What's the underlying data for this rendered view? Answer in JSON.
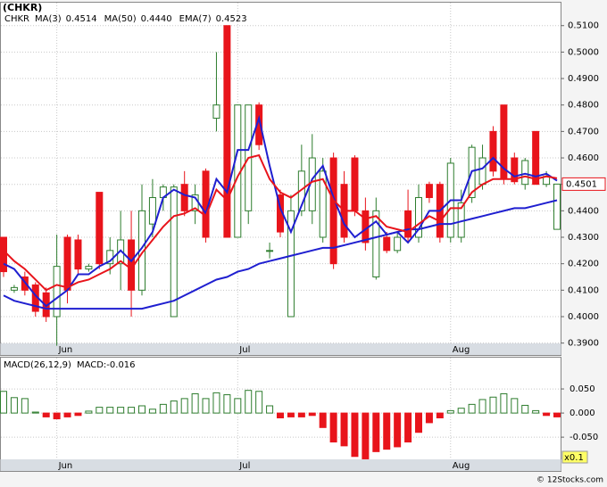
{
  "chart_data": [
    {
      "type": "candlestick",
      "title": "(CHKR)",
      "symbol": "CHKR",
      "categories": [
        null,
        null,
        null,
        null,
        null,
        "Jun",
        null,
        null,
        null,
        null,
        null,
        null,
        null,
        null,
        null,
        null,
        null,
        null,
        null,
        null,
        null,
        null,
        "Jul",
        null,
        null,
        null,
        null,
        null,
        null,
        null,
        null,
        null,
        null,
        null,
        null,
        null,
        null,
        null,
        null,
        null,
        null,
        null,
        "Aug",
        null,
        null,
        null,
        null,
        null,
        null,
        null,
        null,
        null,
        null
      ],
      "candles": [
        [
          0.43,
          0.43,
          0.415,
          0.417
        ],
        [
          0.41,
          0.412,
          0.409,
          0.411
        ],
        [
          0.415,
          0.417,
          0.408,
          0.41
        ],
        [
          0.412,
          0.413,
          0.4,
          0.402
        ],
        [
          0.409,
          0.411,
          0.398,
          0.4
        ],
        [
          0.4,
          0.431,
          0.389,
          0.419
        ],
        [
          0.43,
          0.431,
          0.405,
          0.41
        ],
        [
          0.429,
          0.431,
          0.416,
          0.418
        ],
        [
          0.418,
          0.42,
          0.417,
          0.419
        ],
        [
          0.447,
          0.447,
          0.418,
          0.42
        ],
        [
          0.42,
          0.43,
          0.416,
          0.425
        ],
        [
          0.42,
          0.44,
          0.41,
          0.429
        ],
        [
          0.429,
          0.44,
          0.4,
          0.41
        ],
        [
          0.41,
          0.45,
          0.408,
          0.44
        ],
        [
          0.435,
          0.452,
          0.43,
          0.445
        ],
        [
          0.445,
          0.45,
          0.44,
          0.449
        ],
        [
          0.4,
          0.45,
          0.4,
          0.449
        ],
        [
          0.45,
          0.455,
          0.438,
          0.44
        ],
        [
          0.44,
          0.45,
          0.435,
          0.446
        ],
        [
          0.455,
          0.456,
          0.428,
          0.43
        ],
        [
          0.475,
          0.5,
          0.47,
          0.48
        ],
        [
          0.51,
          0.51,
          0.43,
          0.43
        ],
        [
          0.43,
          0.48,
          0.43,
          0.48
        ],
        [
          0.44,
          0.48,
          0.435,
          0.48
        ],
        [
          0.48,
          0.481,
          0.463,
          0.465
        ],
        [
          0.425,
          0.428,
          0.422,
          0.425
        ],
        [
          0.446,
          0.448,
          0.43,
          0.432
        ],
        [
          0.4,
          0.446,
          0.4,
          0.44
        ],
        [
          0.44,
          0.465,
          0.438,
          0.455
        ],
        [
          0.44,
          0.469,
          0.435,
          0.46
        ],
        [
          0.43,
          0.46,
          0.428,
          0.455
        ],
        [
          0.46,
          0.462,
          0.418,
          0.42
        ],
        [
          0.45,
          0.455,
          0.428,
          0.43
        ],
        [
          0.46,
          0.461,
          0.438,
          0.44
        ],
        [
          0.44,
          0.445,
          0.425,
          0.428
        ],
        [
          0.415,
          0.445,
          0.414,
          0.44
        ],
        [
          0.43,
          0.432,
          0.424,
          0.425
        ],
        [
          0.425,
          0.432,
          0.424,
          0.43
        ],
        [
          0.44,
          0.448,
          0.428,
          0.43
        ],
        [
          0.43,
          0.45,
          0.428,
          0.445
        ],
        [
          0.45,
          0.451,
          0.443,
          0.445
        ],
        [
          0.45,
          0.451,
          0.428,
          0.43
        ],
        [
          0.43,
          0.46,
          0.428,
          0.458
        ],
        [
          0.43,
          0.448,
          0.428,
          0.443
        ],
        [
          0.445,
          0.465,
          0.443,
          0.464
        ],
        [
          0.45,
          0.465,
          0.448,
          0.46
        ],
        [
          0.47,
          0.472,
          0.453,
          0.455
        ],
        [
          0.48,
          0.48,
          0.45,
          0.452
        ],
        [
          0.46,
          0.462,
          0.45,
          0.451
        ],
        [
          0.45,
          0.46,
          0.448,
          0.459
        ],
        [
          0.47,
          0.47,
          0.45,
          0.45
        ],
        [
          0.45,
          0.455,
          0.449,
          0.453
        ],
        [
          0.433,
          0.45,
          0.433,
          0.4501
        ]
      ],
      "up_color": "#2e7d2e",
      "down_color": "#e8141b",
      "series": [
        {
          "name": "MA(3)",
          "last_label": "0.4514",
          "color": "#1f1fd0",
          "values": [
            0.42,
            0.418,
            0.413,
            0.408,
            0.404,
            0.407,
            0.41,
            0.416,
            0.416,
            0.419,
            0.421,
            0.425,
            0.421,
            0.426,
            0.432,
            0.445,
            0.448,
            0.446,
            0.445,
            0.439,
            0.452,
            0.447,
            0.463,
            0.463,
            0.475,
            0.457,
            0.441,
            0.432,
            0.442,
            0.452,
            0.457,
            0.445,
            0.435,
            0.43,
            0.433,
            0.436,
            0.431,
            0.432,
            0.428,
            0.433,
            0.44,
            0.44,
            0.444,
            0.444,
            0.455,
            0.456,
            0.46,
            0.456,
            0.453,
            0.454,
            0.453,
            0.454,
            0.4514
          ]
        },
        {
          "name": "MA(50)",
          "last_label": "0.4440",
          "color": "#1f1fd0",
          "values": [
            0.408,
            0.406,
            0.405,
            0.404,
            0.403,
            0.403,
            0.403,
            0.403,
            0.403,
            0.403,
            0.403,
            0.403,
            0.403,
            0.403,
            0.404,
            0.405,
            0.406,
            0.408,
            0.41,
            0.412,
            0.414,
            0.415,
            0.417,
            0.418,
            0.42,
            0.421,
            0.422,
            0.423,
            0.424,
            0.425,
            0.426,
            0.426,
            0.427,
            0.428,
            0.429,
            0.43,
            0.431,
            0.432,
            0.433,
            0.433,
            0.434,
            0.435,
            0.435,
            0.436,
            0.437,
            0.438,
            0.439,
            0.44,
            0.441,
            0.441,
            0.442,
            0.443,
            0.444
          ]
        },
        {
          "name": "EMA(7)",
          "last_label": "0.4523",
          "color": "#e8141b",
          "values": [
            0.425,
            0.421,
            0.418,
            0.414,
            0.41,
            0.412,
            0.411,
            0.413,
            0.414,
            0.416,
            0.418,
            0.421,
            0.418,
            0.424,
            0.429,
            0.434,
            0.438,
            0.439,
            0.441,
            0.438,
            0.448,
            0.444,
            0.453,
            0.46,
            0.461,
            0.452,
            0.447,
            0.445,
            0.448,
            0.451,
            0.452,
            0.444,
            0.44,
            0.44,
            0.437,
            0.438,
            0.434,
            0.433,
            0.432,
            0.435,
            0.438,
            0.436,
            0.441,
            0.441,
            0.447,
            0.45,
            0.452,
            0.452,
            0.452,
            0.453,
            0.452,
            0.453,
            0.4523
          ]
        }
      ],
      "last_price_label": "0.4501",
      "ylim": [
        0.3855,
        0.518
      ],
      "yticks": [
        {
          "value": 0.39,
          "label": "0.3900"
        },
        {
          "value": 0.4,
          "label": "0.4000"
        },
        {
          "value": 0.41,
          "label": "0.4100"
        },
        {
          "value": 0.42,
          "label": "0.4200"
        },
        {
          "value": 0.43,
          "label": "0.4300"
        },
        {
          "value": 0.44,
          "label": "0.4400"
        },
        {
          "value": 0.45,
          "label": "0.4500"
        },
        {
          "value": 0.46,
          "label": "0.4600"
        },
        {
          "value": 0.47,
          "label": "0.4700"
        },
        {
          "value": 0.48,
          "label": "0.4800"
        },
        {
          "value": 0.49,
          "label": "0.4900"
        },
        {
          "value": 0.5,
          "label": "0.5000"
        },
        {
          "value": 0.51,
          "label": "0.5100"
        }
      ],
      "grid": true
    },
    {
      "type": "histogram",
      "title": "MACD(26,12,9)",
      "macd_label": "MACD:-0.016",
      "scale_label": "x0.1",
      "categories": [
        null,
        null,
        null,
        null,
        null,
        "Jun",
        null,
        null,
        null,
        null,
        null,
        null,
        null,
        null,
        null,
        null,
        null,
        null,
        null,
        null,
        null,
        null,
        "Jul",
        null,
        null,
        null,
        null,
        null,
        null,
        null,
        null,
        null,
        null,
        null,
        null,
        null,
        null,
        null,
        null,
        null,
        null,
        null,
        "Aug",
        null,
        null,
        null,
        null,
        null,
        null,
        null,
        null,
        null,
        null
      ],
      "values": [
        0.045,
        0.032,
        0.03,
        0.002,
        -0.008,
        -0.012,
        -0.008,
        -0.005,
        0.004,
        0.012,
        0.012,
        0.012,
        0.012,
        0.015,
        0.008,
        0.018,
        0.025,
        0.03,
        0.04,
        0.03,
        0.042,
        0.038,
        0.03,
        0.047,
        0.045,
        0.015,
        -0.01,
        -0.008,
        -0.008,
        -0.005,
        -0.03,
        -0.06,
        -0.068,
        -0.09,
        -0.095,
        -0.08,
        -0.075,
        -0.07,
        -0.06,
        -0.04,
        -0.02,
        -0.01,
        0.005,
        0.01,
        0.018,
        0.028,
        0.033,
        0.04,
        0.03,
        0.016,
        0.005,
        -0.005,
        -0.008
      ],
      "up_color": "#2e7d2e",
      "down_color": "#e8141b",
      "ylim": [
        -0.096,
        0.1167
      ],
      "yticks": [
        {
          "value": 0.05,
          "label": "0.050"
        },
        {
          "value": 0,
          "label": "0.000"
        },
        {
          "value": -0.05,
          "label": "-0.050"
        }
      ],
      "grid": true
    },
    {
      "type": "footer",
      "credit": "© 12Stocks.com"
    }
  ]
}
